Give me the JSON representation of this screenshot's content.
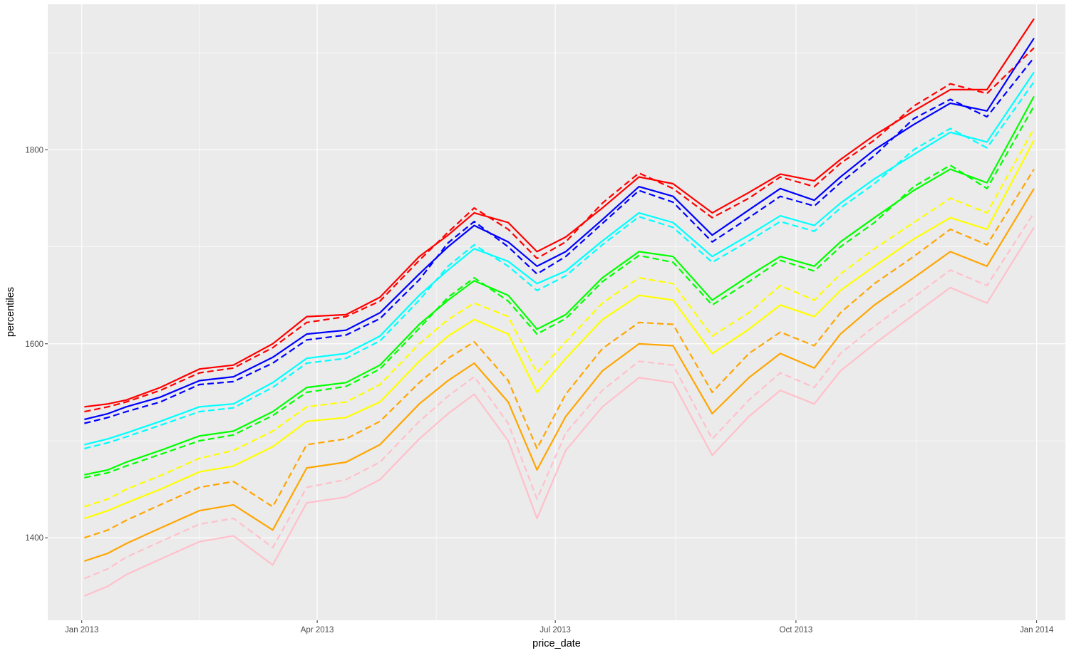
{
  "chart_data": {
    "type": "line",
    "title": "",
    "xlabel": "price_date",
    "ylabel": "percentiles",
    "xlim": [
      "2012-12-19",
      "2014-01-12"
    ],
    "ylim": [
      1315,
      1950
    ],
    "x_ticks": [
      {
        "date": "2013-01-01",
        "label": "Jan 2013"
      },
      {
        "date": "2013-04-01",
        "label": "Apr 2013"
      },
      {
        "date": "2013-07-01",
        "label": "Jul 2013"
      },
      {
        "date": "2013-10-01",
        "label": "Oct 2013"
      },
      {
        "date": "2014-01-01",
        "label": "Jan 2014"
      }
    ],
    "y_ticks": [
      1400,
      1600,
      1800
    ],
    "grid": true,
    "legend": "none",
    "panel_background": "#EBEBEB",
    "grid_color": "#FFFFFF",
    "series_colors": [
      "#FF0000",
      "#0000FF",
      "#00FFFF",
      "#00FF00",
      "#FFFF00",
      "#FFA500",
      "#FFC0CB"
    ],
    "line_styles": [
      "solid",
      "dashed"
    ],
    "series": [
      {
        "color": "#FF0000",
        "linestyle": "solid",
        "x": [
          "2013-01-02",
          "2013-01-11",
          "2013-01-18",
          "2013-01-31",
          "2013-02-15",
          "2013-02-28",
          "2013-03-15",
          "2013-03-28",
          "2013-04-12",
          "2013-04-25",
          "2013-05-10",
          "2013-05-21",
          "2013-05-31",
          "2013-06-13",
          "2013-06-24",
          "2013-07-05",
          "2013-07-19",
          "2013-08-02",
          "2013-08-15",
          "2013-08-30",
          "2013-09-13",
          "2013-09-25",
          "2013-10-08",
          "2013-10-18",
          "2013-10-31",
          "2013-11-15",
          "2013-11-29",
          "2013-12-13",
          "2013-12-31"
        ],
        "values": [
          1535,
          1538,
          1542,
          1555,
          1574,
          1578,
          1600,
          1628,
          1630,
          1648,
          1690,
          1712,
          1735,
          1725,
          1695,
          1710,
          1740,
          1772,
          1765,
          1735,
          1756,
          1775,
          1768,
          1790,
          1815,
          1840,
          1862,
          1862,
          1935
        ]
      },
      {
        "color": "#FF0000",
        "linestyle": "dashed",
        "x": [
          "2013-01-02",
          "2013-01-11",
          "2013-01-18",
          "2013-01-31",
          "2013-02-15",
          "2013-02-28",
          "2013-03-15",
          "2013-03-28",
          "2013-04-12",
          "2013-04-25",
          "2013-05-10",
          "2013-05-21",
          "2013-05-31",
          "2013-06-13",
          "2013-06-24",
          "2013-07-05",
          "2013-07-19",
          "2013-08-02",
          "2013-08-15",
          "2013-08-30",
          "2013-09-13",
          "2013-09-25",
          "2013-10-08",
          "2013-10-18",
          "2013-10-31",
          "2013-11-15",
          "2013-11-29",
          "2013-12-13",
          "2013-12-31"
        ],
        "values": [
          1530,
          1535,
          1540,
          1552,
          1570,
          1575,
          1596,
          1622,
          1628,
          1644,
          1686,
          1715,
          1740,
          1718,
          1688,
          1705,
          1745,
          1776,
          1760,
          1730,
          1750,
          1772,
          1762,
          1786,
          1810,
          1845,
          1868,
          1858,
          1905
        ]
      },
      {
        "color": "#0000FF",
        "linestyle": "solid",
        "x": [
          "2013-01-02",
          "2013-01-11",
          "2013-01-18",
          "2013-01-31",
          "2013-02-15",
          "2013-02-28",
          "2013-03-15",
          "2013-03-28",
          "2013-04-12",
          "2013-04-25",
          "2013-05-10",
          "2013-05-21",
          "2013-05-31",
          "2013-06-13",
          "2013-06-24",
          "2013-07-05",
          "2013-07-19",
          "2013-08-02",
          "2013-08-15",
          "2013-08-30",
          "2013-09-13",
          "2013-09-25",
          "2013-10-08",
          "2013-10-18",
          "2013-10-31",
          "2013-11-15",
          "2013-11-29",
          "2013-12-13",
          "2013-12-31"
        ],
        "values": [
          1522,
          1528,
          1535,
          1545,
          1562,
          1566,
          1586,
          1610,
          1614,
          1632,
          1672,
          1700,
          1722,
          1705,
          1680,
          1695,
          1728,
          1762,
          1752,
          1712,
          1738,
          1760,
          1748,
          1772,
          1800,
          1826,
          1848,
          1840,
          1915
        ]
      },
      {
        "color": "#0000FF",
        "linestyle": "dashed",
        "x": [
          "2013-01-02",
          "2013-01-11",
          "2013-01-18",
          "2013-01-31",
          "2013-02-15",
          "2013-02-28",
          "2013-03-15",
          "2013-03-28",
          "2013-04-12",
          "2013-04-25",
          "2013-05-10",
          "2013-05-21",
          "2013-05-31",
          "2013-06-13",
          "2013-06-24",
          "2013-07-05",
          "2013-07-19",
          "2013-08-02",
          "2013-08-15",
          "2013-08-30",
          "2013-09-13",
          "2013-09-25",
          "2013-10-08",
          "2013-10-18",
          "2013-10-31",
          "2013-11-15",
          "2013-11-29",
          "2013-12-13",
          "2013-12-31"
        ],
        "values": [
          1518,
          1524,
          1530,
          1540,
          1558,
          1561,
          1580,
          1604,
          1609,
          1626,
          1666,
          1704,
          1726,
          1700,
          1672,
          1690,
          1724,
          1758,
          1746,
          1705,
          1730,
          1752,
          1742,
          1766,
          1794,
          1832,
          1852,
          1834,
          1895
        ]
      },
      {
        "color": "#00FFFF",
        "linestyle": "solid",
        "x": [
          "2013-01-02",
          "2013-01-11",
          "2013-01-18",
          "2013-01-31",
          "2013-02-15",
          "2013-02-28",
          "2013-03-15",
          "2013-03-28",
          "2013-04-12",
          "2013-04-25",
          "2013-05-10",
          "2013-05-21",
          "2013-05-31",
          "2013-06-13",
          "2013-06-24",
          "2013-07-05",
          "2013-07-19",
          "2013-08-02",
          "2013-08-15",
          "2013-08-30",
          "2013-09-13",
          "2013-09-25",
          "2013-10-08",
          "2013-10-18",
          "2013-10-31",
          "2013-11-15",
          "2013-11-29",
          "2013-12-13",
          "2013-12-31"
        ],
        "values": [
          1496,
          1502,
          1508,
          1520,
          1535,
          1538,
          1560,
          1585,
          1590,
          1608,
          1650,
          1676,
          1698,
          1685,
          1662,
          1675,
          1706,
          1735,
          1725,
          1690,
          1712,
          1732,
          1722,
          1745,
          1770,
          1795,
          1818,
          1808,
          1880
        ]
      },
      {
        "color": "#00FFFF",
        "linestyle": "dashed",
        "x": [
          "2013-01-02",
          "2013-01-11",
          "2013-01-18",
          "2013-01-31",
          "2013-02-15",
          "2013-02-28",
          "2013-03-15",
          "2013-03-28",
          "2013-04-12",
          "2013-04-25",
          "2013-05-10",
          "2013-05-21",
          "2013-05-31",
          "2013-06-13",
          "2013-06-24",
          "2013-07-05",
          "2013-07-19",
          "2013-08-02",
          "2013-08-15",
          "2013-08-30",
          "2013-09-13",
          "2013-09-25",
          "2013-10-08",
          "2013-10-18",
          "2013-10-31",
          "2013-11-15",
          "2013-11-29",
          "2013-12-13",
          "2013-12-31"
        ],
        "values": [
          1492,
          1498,
          1504,
          1516,
          1530,
          1534,
          1555,
          1580,
          1585,
          1603,
          1645,
          1680,
          1702,
          1680,
          1655,
          1670,
          1702,
          1731,
          1720,
          1684,
          1706,
          1726,
          1716,
          1740,
          1765,
          1800,
          1822,
          1802,
          1870
        ]
      },
      {
        "color": "#00FF00",
        "linestyle": "solid",
        "x": [
          "2013-01-02",
          "2013-01-11",
          "2013-01-18",
          "2013-01-31",
          "2013-02-15",
          "2013-02-28",
          "2013-03-15",
          "2013-03-28",
          "2013-04-12",
          "2013-04-25",
          "2013-05-10",
          "2013-05-21",
          "2013-05-31",
          "2013-06-13",
          "2013-06-24",
          "2013-07-05",
          "2013-07-19",
          "2013-08-02",
          "2013-08-15",
          "2013-08-30",
          "2013-09-13",
          "2013-09-25",
          "2013-10-08",
          "2013-10-18",
          "2013-10-31",
          "2013-11-15",
          "2013-11-29",
          "2013-12-13",
          "2013-12-31"
        ],
        "values": [
          1465,
          1470,
          1478,
          1490,
          1505,
          1510,
          1530,
          1555,
          1560,
          1578,
          1620,
          1645,
          1665,
          1650,
          1615,
          1630,
          1668,
          1695,
          1690,
          1645,
          1670,
          1690,
          1680,
          1705,
          1730,
          1758,
          1780,
          1766,
          1855
        ]
      },
      {
        "color": "#00FF00",
        "linestyle": "dashed",
        "x": [
          "2013-01-02",
          "2013-01-11",
          "2013-01-18",
          "2013-01-31",
          "2013-02-15",
          "2013-02-28",
          "2013-03-15",
          "2013-03-28",
          "2013-04-12",
          "2013-04-25",
          "2013-05-10",
          "2013-05-21",
          "2013-05-31",
          "2013-06-13",
          "2013-06-24",
          "2013-07-05",
          "2013-07-19",
          "2013-08-02",
          "2013-08-15",
          "2013-08-30",
          "2013-09-13",
          "2013-09-25",
          "2013-10-08",
          "2013-10-18",
          "2013-10-31",
          "2013-11-15",
          "2013-11-29",
          "2013-12-13",
          "2013-12-31"
        ],
        "values": [
          1462,
          1467,
          1474,
          1486,
          1500,
          1506,
          1526,
          1550,
          1556,
          1574,
          1616,
          1648,
          1668,
          1644,
          1610,
          1626,
          1664,
          1691,
          1684,
          1640,
          1664,
          1686,
          1675,
          1700,
          1725,
          1762,
          1784,
          1760,
          1845
        ]
      },
      {
        "color": "#FFFF00",
        "linestyle": "solid",
        "x": [
          "2013-01-02",
          "2013-01-11",
          "2013-01-18",
          "2013-01-31",
          "2013-02-15",
          "2013-02-28",
          "2013-03-15",
          "2013-03-28",
          "2013-04-12",
          "2013-04-25",
          "2013-05-10",
          "2013-05-21",
          "2013-05-31",
          "2013-06-13",
          "2013-06-24",
          "2013-07-05",
          "2013-07-19",
          "2013-08-02",
          "2013-08-15",
          "2013-08-30",
          "2013-09-13",
          "2013-09-25",
          "2013-10-08",
          "2013-10-18",
          "2013-10-31",
          "2013-11-15",
          "2013-11-29",
          "2013-12-13",
          "2013-12-31"
        ],
        "values": [
          1420,
          1428,
          1436,
          1450,
          1468,
          1474,
          1494,
          1520,
          1524,
          1540,
          1582,
          1608,
          1625,
          1610,
          1550,
          1585,
          1625,
          1650,
          1645,
          1590,
          1615,
          1640,
          1628,
          1655,
          1680,
          1708,
          1730,
          1718,
          1810
        ]
      },
      {
        "color": "#FFFF00",
        "linestyle": "dashed",
        "x": [
          "2013-01-02",
          "2013-01-11",
          "2013-01-18",
          "2013-01-31",
          "2013-02-15",
          "2013-02-28",
          "2013-03-15",
          "2013-03-28",
          "2013-04-12",
          "2013-04-25",
          "2013-05-10",
          "2013-05-21",
          "2013-05-31",
          "2013-06-13",
          "2013-06-24",
          "2013-07-05",
          "2013-07-19",
          "2013-08-02",
          "2013-08-15",
          "2013-08-30",
          "2013-09-13",
          "2013-09-25",
          "2013-10-08",
          "2013-10-18",
          "2013-10-31",
          "2013-11-15",
          "2013-11-29",
          "2013-12-13",
          "2013-12-31"
        ],
        "values": [
          1432,
          1440,
          1450,
          1464,
          1482,
          1490,
          1510,
          1535,
          1540,
          1558,
          1600,
          1625,
          1642,
          1628,
          1570,
          1602,
          1642,
          1668,
          1662,
          1608,
          1632,
          1660,
          1645,
          1672,
          1698,
          1725,
          1750,
          1735,
          1822
        ]
      },
      {
        "color": "#FFA500",
        "linestyle": "solid",
        "x": [
          "2013-01-02",
          "2013-01-11",
          "2013-01-18",
          "2013-01-31",
          "2013-02-15",
          "2013-02-28",
          "2013-03-15",
          "2013-03-28",
          "2013-04-12",
          "2013-04-25",
          "2013-05-10",
          "2013-05-21",
          "2013-05-31",
          "2013-06-13",
          "2013-06-24",
          "2013-07-05",
          "2013-07-19",
          "2013-08-02",
          "2013-08-15",
          "2013-08-30",
          "2013-09-13",
          "2013-09-25",
          "2013-10-08",
          "2013-10-18",
          "2013-10-31",
          "2013-11-15",
          "2013-11-29",
          "2013-12-13",
          "2013-12-31"
        ],
        "values": [
          1376,
          1384,
          1394,
          1410,
          1428,
          1434,
          1408,
          1472,
          1478,
          1496,
          1538,
          1562,
          1580,
          1540,
          1470,
          1525,
          1572,
          1600,
          1598,
          1528,
          1565,
          1590,
          1575,
          1610,
          1640,
          1668,
          1695,
          1680,
          1760
        ]
      },
      {
        "color": "#FFA500",
        "linestyle": "dashed",
        "x": [
          "2013-01-02",
          "2013-01-11",
          "2013-01-18",
          "2013-01-31",
          "2013-02-15",
          "2013-02-28",
          "2013-03-15",
          "2013-03-28",
          "2013-04-12",
          "2013-04-25",
          "2013-05-10",
          "2013-05-21",
          "2013-05-31",
          "2013-06-13",
          "2013-06-24",
          "2013-07-05",
          "2013-07-19",
          "2013-08-02",
          "2013-08-15",
          "2013-08-30",
          "2013-09-13",
          "2013-09-25",
          "2013-10-08",
          "2013-10-18",
          "2013-10-31",
          "2013-11-15",
          "2013-11-29",
          "2013-12-13",
          "2013-12-31"
        ],
        "values": [
          1400,
          1408,
          1418,
          1434,
          1452,
          1458,
          1432,
          1496,
          1502,
          1520,
          1560,
          1585,
          1602,
          1562,
          1492,
          1548,
          1595,
          1622,
          1620,
          1550,
          1590,
          1612,
          1598,
          1632,
          1662,
          1690,
          1718,
          1702,
          1780
        ]
      },
      {
        "color": "#FFC0CB",
        "linestyle": "solid",
        "x": [
          "2013-01-02",
          "2013-01-11",
          "2013-01-18",
          "2013-01-31",
          "2013-02-15",
          "2013-02-28",
          "2013-03-15",
          "2013-03-28",
          "2013-04-12",
          "2013-04-25",
          "2013-05-10",
          "2013-05-21",
          "2013-05-31",
          "2013-06-13",
          "2013-06-24",
          "2013-07-05",
          "2013-07-19",
          "2013-08-02",
          "2013-08-15",
          "2013-08-30",
          "2013-09-13",
          "2013-09-25",
          "2013-10-08",
          "2013-10-18",
          "2013-10-31",
          "2013-11-15",
          "2013-11-29",
          "2013-12-13",
          "2013-12-31"
        ],
        "values": [
          1340,
          1350,
          1362,
          1378,
          1396,
          1402,
          1372,
          1436,
          1442,
          1460,
          1502,
          1528,
          1548,
          1500,
          1420,
          1490,
          1535,
          1565,
          1560,
          1485,
          1525,
          1552,
          1538,
          1572,
          1600,
          1630,
          1658,
          1642,
          1720
        ]
      },
      {
        "color": "#FFC0CB",
        "linestyle": "dashed",
        "x": [
          "2013-01-02",
          "2013-01-11",
          "2013-01-18",
          "2013-01-31",
          "2013-02-15",
          "2013-02-28",
          "2013-03-15",
          "2013-03-28",
          "2013-04-12",
          "2013-04-25",
          "2013-05-10",
          "2013-05-21",
          "2013-05-31",
          "2013-06-13",
          "2013-06-24",
          "2013-07-05",
          "2013-07-19",
          "2013-08-02",
          "2013-08-15",
          "2013-08-30",
          "2013-09-13",
          "2013-09-25",
          "2013-10-08",
          "2013-10-18",
          "2013-10-31",
          "2013-11-15",
          "2013-11-29",
          "2013-12-13",
          "2013-12-31"
        ],
        "values": [
          1358,
          1368,
          1380,
          1396,
          1414,
          1420,
          1390,
          1452,
          1460,
          1478,
          1520,
          1546,
          1566,
          1518,
          1440,
          1508,
          1552,
          1582,
          1578,
          1502,
          1542,
          1570,
          1555,
          1590,
          1618,
          1648,
          1676,
          1660,
          1735
        ]
      }
    ]
  }
}
